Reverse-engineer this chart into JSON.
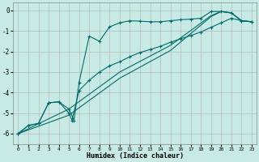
{
  "xlabel": "Humidex (Indice chaleur)",
  "bg_color": "#c8eae4",
  "grid_color": "#b0b0b0",
  "line_color": "#006b6b",
  "xlim": [
    -0.5,
    23.5
  ],
  "ylim": [
    -6.5,
    0.4
  ],
  "xticks": [
    0,
    1,
    2,
    3,
    4,
    5,
    6,
    7,
    8,
    9,
    10,
    11,
    12,
    13,
    14,
    15,
    16,
    17,
    18,
    19,
    20,
    21,
    22,
    23
  ],
  "yticks": [
    0,
    -1,
    -2,
    -3,
    -4,
    -5,
    -6
  ],
  "series": [
    {
      "points": [
        [
          0,
          -6.0
        ],
        [
          1,
          -5.6
        ],
        [
          2,
          -5.5
        ],
        [
          3,
          -4.5
        ],
        [
          4,
          -4.45
        ],
        [
          5,
          -4.8
        ],
        [
          5.5,
          -5.35
        ],
        [
          6,
          -3.5
        ],
        [
          7,
          -1.25
        ],
        [
          8,
          -1.5
        ],
        [
          9,
          -0.8
        ],
        [
          10,
          -0.6
        ],
        [
          11,
          -0.5
        ],
        [
          12,
          -0.52
        ],
        [
          13,
          -0.55
        ],
        [
          14,
          -0.55
        ],
        [
          15,
          -0.5
        ],
        [
          16,
          -0.45
        ],
        [
          17,
          -0.42
        ],
        [
          18,
          -0.38
        ],
        [
          19,
          -0.05
        ],
        [
          20,
          -0.05
        ],
        [
          21,
          -0.12
        ],
        [
          22,
          -0.5
        ],
        [
          23,
          -0.55
        ]
      ],
      "marker": true
    },
    {
      "points": [
        [
          0,
          -6.0
        ],
        [
          1,
          -5.6
        ],
        [
          2,
          -5.5
        ],
        [
          3,
          -4.5
        ],
        [
          4,
          -4.45
        ],
        [
          5,
          -5.0
        ],
        [
          5.3,
          -5.35
        ],
        [
          6,
          -3.9
        ],
        [
          7,
          -3.4
        ],
        [
          8,
          -3.0
        ],
        [
          9,
          -2.7
        ],
        [
          10,
          -2.5
        ],
        [
          11,
          -2.25
        ],
        [
          12,
          -2.05
        ],
        [
          13,
          -1.9
        ],
        [
          14,
          -1.75
        ],
        [
          15,
          -1.55
        ],
        [
          16,
          -1.38
        ],
        [
          17,
          -1.22
        ],
        [
          18,
          -1.05
        ],
        [
          19,
          -0.82
        ],
        [
          20,
          -0.6
        ],
        [
          21,
          -0.38
        ],
        [
          22,
          -0.5
        ],
        [
          23,
          -0.55
        ]
      ],
      "marker": true
    },
    {
      "points": [
        [
          0,
          -6.0
        ],
        [
          5,
          -5.1
        ],
        [
          10,
          -3.3
        ],
        [
          15,
          -1.95
        ],
        [
          19,
          -0.3
        ],
        [
          20,
          -0.05
        ],
        [
          21,
          -0.12
        ],
        [
          22,
          -0.5
        ],
        [
          23,
          -0.55
        ]
      ],
      "marker": false
    },
    {
      "points": [
        [
          0,
          -6.0
        ],
        [
          5,
          -4.8
        ],
        [
          10,
          -3.0
        ],
        [
          15,
          -1.7
        ],
        [
          19,
          -0.25
        ],
        [
          20,
          -0.05
        ],
        [
          21,
          -0.12
        ],
        [
          22,
          -0.5
        ],
        [
          23,
          -0.55
        ]
      ],
      "marker": false
    }
  ]
}
